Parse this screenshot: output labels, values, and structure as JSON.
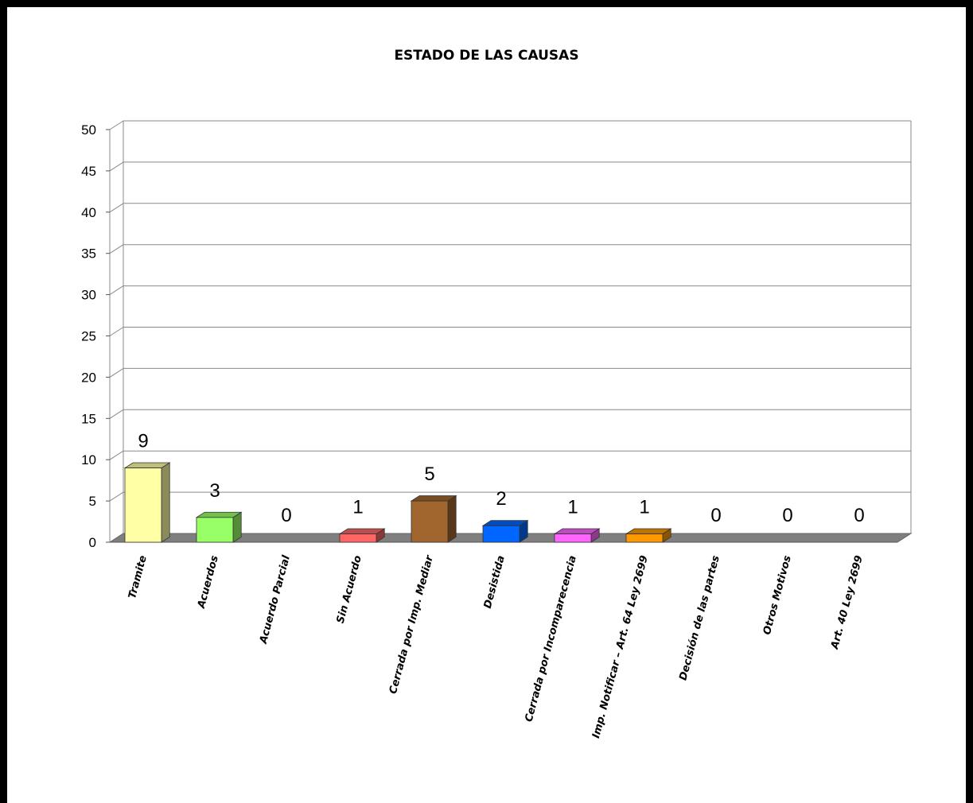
{
  "chart_data": {
    "type": "bar",
    "title": "ESTADO DE LAS CAUSAS",
    "xlabel": "",
    "ylabel": "",
    "ylim": [
      0,
      50
    ],
    "yticks": [
      0,
      5,
      10,
      15,
      20,
      25,
      30,
      35,
      40,
      45,
      50
    ],
    "grid": true,
    "legend": "none",
    "style": "3d-column",
    "categories": [
      "Tramite",
      "Acuerdos",
      "Acuerdo Parcial",
      "Sin Acuerdo",
      "Cerrada por Imp. Mediar",
      "Desistida",
      "Cerrada por Incomparecencia",
      "Imp. Notificar – Art. 64 Ley 2699",
      "Decisión de las partes",
      "Otros Motivos",
      "Art. 40 Ley 2699"
    ],
    "values": [
      9,
      3,
      0,
      1,
      5,
      2,
      1,
      1,
      0,
      0,
      0
    ],
    "data_labels": [
      "9",
      "3",
      "0",
      "1",
      "5",
      "2",
      "1",
      "1",
      "0",
      "0",
      "0"
    ],
    "colors": [
      "#FFFFA6",
      "#99FF66",
      "#FF9999",
      "#FF6666",
      "#A0662E",
      "#0066FF",
      "#FF66FF",
      "#FF9900",
      "#CCCCCC",
      "#CCCCCC",
      "#CCCCCC"
    ]
  }
}
